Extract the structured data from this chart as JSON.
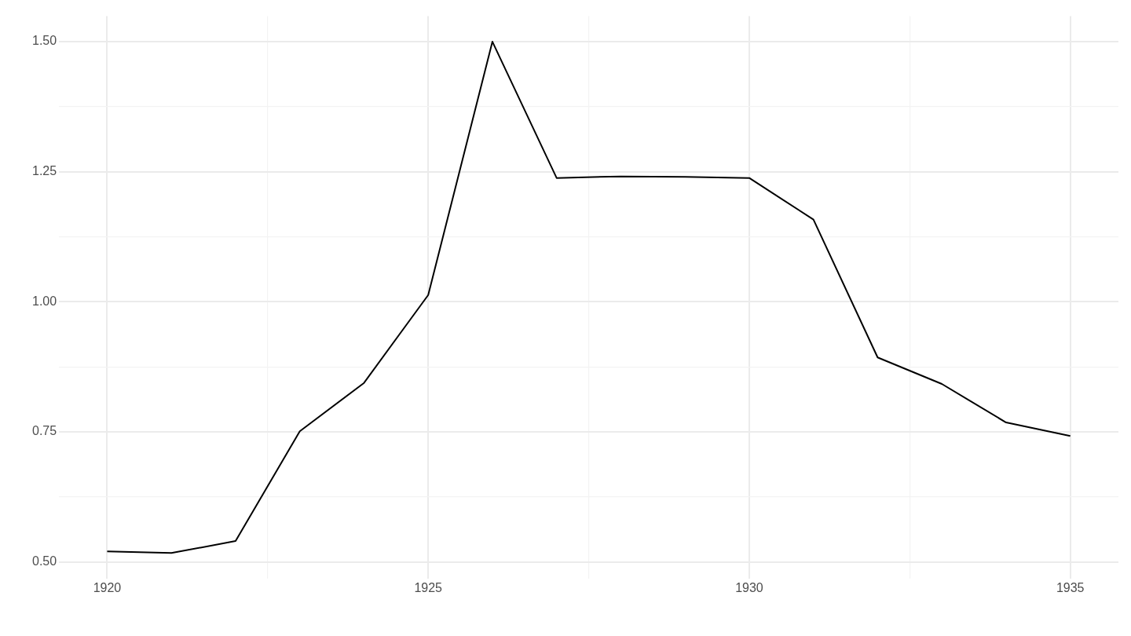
{
  "chart_data": {
    "type": "line",
    "x": [
      1920,
      1921,
      1922,
      1923,
      1924,
      1925,
      1926,
      1927,
      1928,
      1929,
      1930,
      1931,
      1932,
      1933,
      1934,
      1935
    ],
    "series": [
      {
        "color": "#000000",
        "values": [
          0.52,
          0.517,
          0.54,
          0.751,
          0.844,
          1.013,
          1.5,
          1.238,
          1.241,
          1.24,
          1.238,
          1.158,
          0.893,
          0.842,
          0.768,
          0.742
        ]
      }
    ],
    "xlim": [
      1919.25,
      1935.75
    ],
    "xticks": [
      1920,
      {
        "value": 1922.5,
        "label": null
      },
      1925,
      {
        "value": 1927.5,
        "label": null
      },
      1930,
      {
        "value": 1932.5,
        "label": null
      },
      1935
    ],
    "ylim": [
      0.468,
      1.549
    ],
    "yticks": [
      {
        "value": 0.5,
        "label": "0.50"
      },
      {
        "value": 0.625,
        "label": null
      },
      {
        "value": 0.75,
        "label": "0.75"
      },
      {
        "value": 0.875,
        "label": null
      },
      {
        "value": 1.0,
        "label": "1.00"
      },
      {
        "value": 1.125,
        "label": null
      },
      {
        "value": 1.25,
        "label": "1.25"
      },
      {
        "value": 1.375,
        "label": null
      },
      {
        "value": 1.5,
        "label": "1.50"
      }
    ],
    "grid": true,
    "legend": false,
    "marker": "none",
    "line_style": "solid"
  }
}
